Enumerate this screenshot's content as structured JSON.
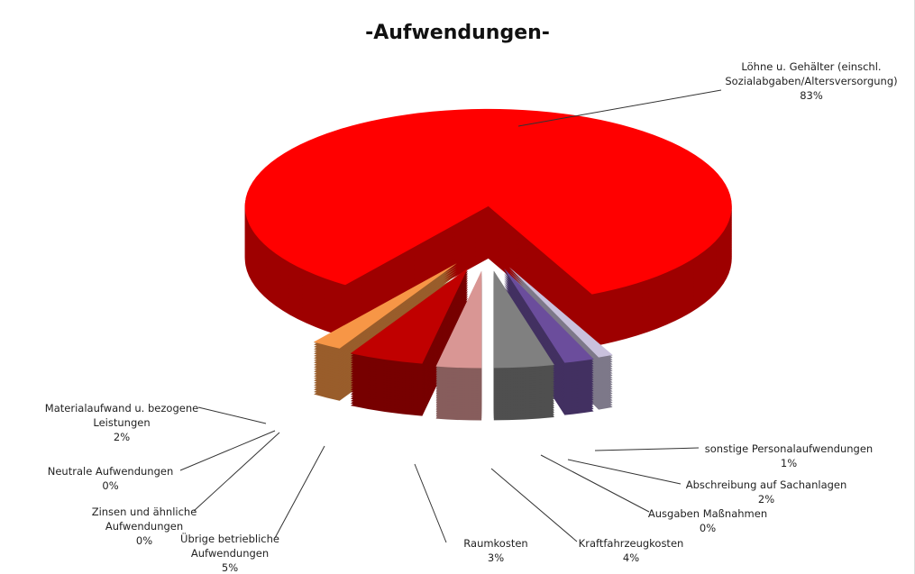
{
  "chart_data": {
    "type": "pie",
    "title": "-Aufwendungen-",
    "categories": [
      "Löhne u. Gehälter (einschl. Sozialabgaben/Altersversorgung)",
      "sonstige Personalaufwendungen",
      "Abschreibung auf Sachanlagen",
      "Ausgaben Maßnahmen",
      "Kraftfahrzeugkosten",
      "Raumkosten",
      "Übrige betriebliche Aufwendungen",
      "Zinsen und ähnliche Aufwendungen",
      "Neutrale Aufwendungen",
      "Materialaufwand u. bezogene Leistungen"
    ],
    "values": [
      83,
      1,
      2,
      0,
      4,
      3,
      5,
      0,
      0,
      2
    ],
    "value_labels": [
      "83%",
      "1%",
      "2%",
      "0%",
      "4%",
      "3%",
      "5%",
      "0%",
      "0%",
      "2%"
    ],
    "colors": [
      "#ff0000",
      "#c9c1dd",
      "#6b4d9c",
      "#1f5560",
      "#808080",
      "#d99694",
      "#c00000",
      "#8e3a3a",
      "#7a3f3f",
      "#f79646"
    ]
  }
}
